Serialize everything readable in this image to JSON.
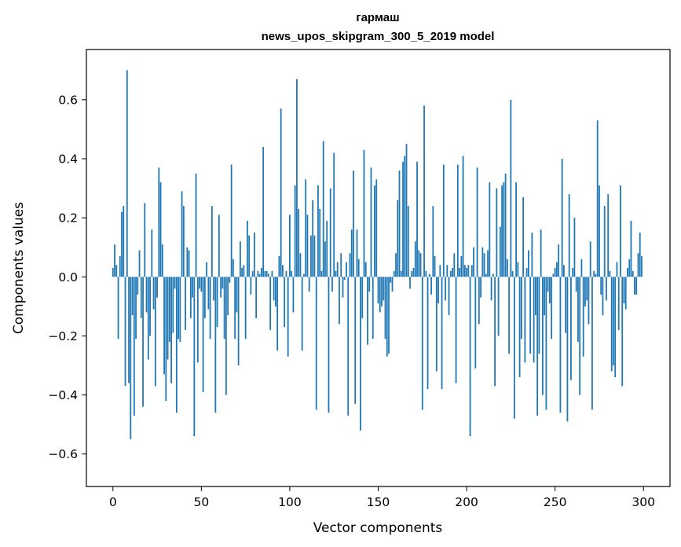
{
  "chart_data": {
    "type": "bar",
    "title": "гармаш",
    "subtitle": "news_upos_skipgram_300_5_2019 model",
    "xlabel": "Vector components",
    "ylabel": "Components values",
    "xlim": [
      -15,
      315
    ],
    "ylim": [
      -0.71,
      0.77
    ],
    "xticks": [
      0,
      50,
      100,
      150,
      200,
      250,
      300
    ],
    "xtick_labels": [
      "0",
      "50",
      "100",
      "150",
      "200",
      "250",
      "300"
    ],
    "yticks": [
      -0.6,
      -0.4,
      -0.2,
      0.0,
      0.2,
      0.4,
      0.6
    ],
    "ytick_labels": [
      "−0.6",
      "−0.4",
      "−0.2",
      "0.0",
      "0.2",
      "0.4",
      "0.6"
    ],
    "bar_color": "#1f77b4",
    "grid": false,
    "legend": "none",
    "x": [
      0,
      1,
      2,
      3,
      4,
      5,
      6,
      7,
      8,
      9,
      10,
      11,
      12,
      13,
      14,
      15,
      16,
      17,
      18,
      19,
      20,
      21,
      22,
      23,
      24,
      25,
      26,
      27,
      28,
      29,
      30,
      31,
      32,
      33,
      34,
      35,
      36,
      37,
      38,
      39,
      40,
      41,
      42,
      43,
      44,
      45,
      46,
      47,
      48,
      49,
      50,
      51,
      52,
      53,
      54,
      55,
      56,
      57,
      58,
      59,
      60,
      61,
      62,
      63,
      64,
      65,
      66,
      67,
      68,
      69,
      70,
      71,
      72,
      73,
      74,
      75,
      76,
      77,
      78,
      79,
      80,
      81,
      82,
      83,
      84,
      85,
      86,
      87,
      88,
      89,
      90,
      91,
      92,
      93,
      94,
      95,
      96,
      97,
      98,
      99,
      100,
      101,
      102,
      103,
      104,
      105,
      106,
      107,
      108,
      109,
      110,
      111,
      112,
      113,
      114,
      115,
      116,
      117,
      118,
      119,
      120,
      121,
      122,
      123,
      124,
      125,
      126,
      127,
      128,
      129,
      130,
      131,
      132,
      133,
      134,
      135,
      136,
      137,
      138,
      139,
      140,
      141,
      142,
      143,
      144,
      145,
      146,
      147,
      148,
      149,
      150,
      151,
      152,
      153,
      154,
      155,
      156,
      157,
      158,
      159,
      160,
      161,
      162,
      163,
      164,
      165,
      166,
      167,
      168,
      169,
      170,
      171,
      172,
      173,
      174,
      175,
      176,
      177,
      178,
      179,
      180,
      181,
      182,
      183,
      184,
      185,
      186,
      187,
      188,
      189,
      190,
      191,
      192,
      193,
      194,
      195,
      196,
      197,
      198,
      199,
      200,
      201,
      202,
      203,
      204,
      205,
      206,
      207,
      208,
      209,
      210,
      211,
      212,
      213,
      214,
      215,
      216,
      217,
      218,
      219,
      220,
      221,
      222,
      223,
      224,
      225,
      226,
      227,
      228,
      229,
      230,
      231,
      232,
      233,
      234,
      235,
      236,
      237,
      238,
      239,
      240,
      241,
      242,
      243,
      244,
      245,
      246,
      247,
      248,
      249,
      250,
      251,
      252,
      253,
      254,
      255,
      256,
      257,
      258,
      259,
      260,
      261,
      262,
      263,
      264,
      265,
      266,
      267,
      268,
      269,
      270,
      271,
      272,
      273,
      274,
      275,
      276,
      277,
      278,
      279,
      280,
      281,
      282,
      283,
      284,
      285,
      286,
      287,
      288,
      289,
      290,
      291,
      292,
      293,
      294,
      295,
      296,
      297,
      298,
      299
    ],
    "values": [
      0.03,
      0.11,
      0.04,
      -0.21,
      0.07,
      0.22,
      0.24,
      -0.37,
      0.7,
      -0.36,
      -0.55,
      -0.13,
      -0.47,
      -0.21,
      -0.06,
      0.09,
      -0.14,
      -0.44,
      0.25,
      -0.12,
      -0.28,
      -0.2,
      0.16,
      -0.11,
      -0.37,
      -0.07,
      0.37,
      0.32,
      0.11,
      -0.33,
      -0.42,
      -0.28,
      -0.22,
      -0.36,
      -0.19,
      -0.04,
      -0.46,
      -0.21,
      -0.22,
      0.29,
      0.24,
      -0.18,
      0.1,
      0.09,
      -0.14,
      -0.07,
      -0.54,
      0.35,
      -0.29,
      -0.04,
      -0.05,
      -0.39,
      -0.14,
      0.05,
      -0.11,
      -0.21,
      0.24,
      -0.08,
      -0.46,
      -0.17,
      0.21,
      -0.07,
      -0.04,
      -0.21,
      -0.4,
      -0.13,
      -0.02,
      0.38,
      0.06,
      -0.21,
      -0.12,
      -0.3,
      0.12,
      0.03,
      0.04,
      -0.21,
      0.19,
      0.14,
      -0.06,
      0.02,
      0.15,
      -0.14,
      0.02,
      0.01,
      0.03,
      0.44,
      0.02,
      0.02,
      0.01,
      -0.18,
      0.02,
      -0.08,
      -0.1,
      -0.25,
      0.07,
      0.57,
      0.04,
      -0.17,
      0.02,
      -0.27,
      0.21,
      0.02,
      -0.12,
      0.31,
      0.67,
      0.23,
      0.08,
      -0.25,
      0.01,
      0.33,
      0.21,
      -0.05,
      0.14,
      0.26,
      0.14,
      -0.45,
      0.31,
      0.23,
      0.02,
      0.46,
      0.12,
      0.19,
      -0.46,
      0.3,
      -0.05,
      0.42,
      0.02,
      0.05,
      -0.16,
      0.08,
      -0.07,
      -0.01,
      0.05,
      -0.47,
      0.08,
      0.16,
      0.36,
      -0.43,
      0.16,
      0.06,
      -0.52,
      -0.14,
      0.43,
      0.05,
      -0.23,
      -0.05,
      0.37,
      -0.21,
      0.31,
      0.33,
      -0.09,
      -0.12,
      -0.1,
      -0.08,
      -0.21,
      -0.27,
      -0.26,
      -0.02,
      -0.05,
      0.02,
      0.08,
      0.26,
      0.36,
      0.02,
      0.39,
      0.41,
      0.45,
      0.24,
      -0.04,
      0.02,
      0.03,
      0.12,
      0.39,
      0.09,
      0.08,
      -0.45,
      0.58,
      0.02,
      -0.38,
      0.01,
      -0.06,
      0.24,
      0.07,
      -0.32,
      -0.09,
      0.04,
      -0.38,
      0.38,
      -0.08,
      0.04,
      -0.13,
      0.02,
      0.03,
      0.08,
      -0.36,
      0.38,
      0.03,
      0.07,
      0.41,
      0.04,
      0.03,
      0.04,
      -0.54,
      0.04,
      0.1,
      -0.31,
      0.37,
      -0.16,
      -0.07,
      0.1,
      0.08,
      0.01,
      0.09,
      0.32,
      -0.08,
      0.01,
      -0.37,
      0.3,
      -0.2,
      0.17,
      0.31,
      0.32,
      0.35,
      0.06,
      -0.26,
      0.6,
      0.02,
      -0.48,
      0.32,
      0.05,
      -0.34,
      -0.21,
      0.27,
      -0.29,
      0.03,
      0.09,
      -0.26,
      0.15,
      -0.29,
      -0.13,
      -0.47,
      -0.26,
      0.16,
      -0.4,
      -0.13,
      -0.45,
      -0.05,
      -0.09,
      -0.21,
      0.01,
      0.03,
      0.05,
      0.11,
      -0.46,
      0.4,
      0.04,
      -0.19,
      -0.49,
      0.28,
      -0.35,
      0.03,
      0.2,
      -0.05,
      -0.22,
      -0.4,
      0.06,
      -0.27,
      -0.1,
      -0.08,
      -0.16,
      0.12,
      -0.45,
      0.02,
      0.01,
      0.53,
      0.31,
      -0.06,
      -0.13,
      0.24,
      -0.08,
      0.28,
      0.02,
      -0.32,
      -0.3,
      -0.34,
      0.05,
      -0.18,
      0.31,
      -0.37,
      -0.09,
      -0.11,
      0.03,
      0.06,
      0.19,
      0.02,
      -0.06,
      -0.06,
      0.08,
      0.15,
      0.07
    ]
  }
}
